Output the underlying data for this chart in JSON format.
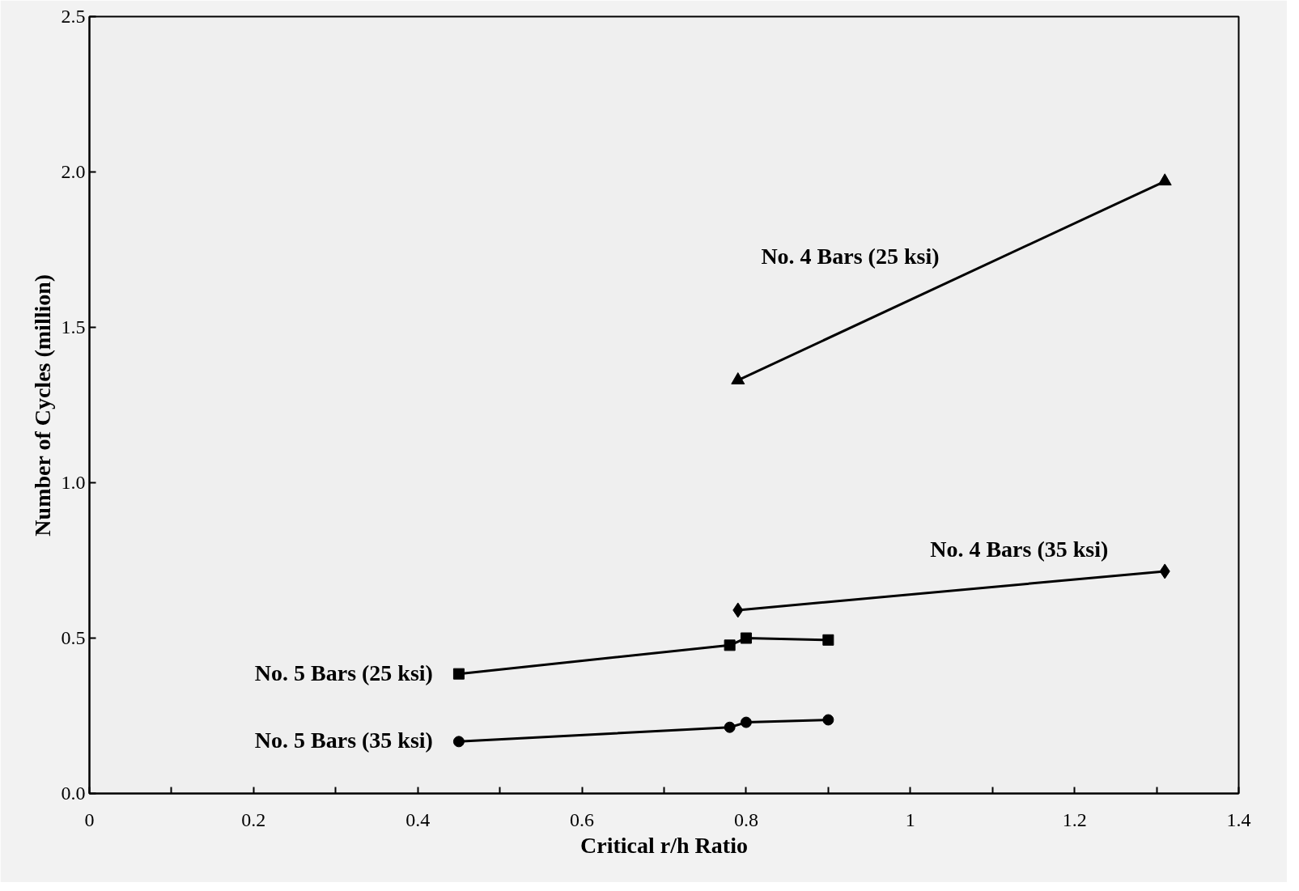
{
  "chart_data": {
    "type": "line",
    "xlabel": "Critical r/h Ratio",
    "ylabel": "Number of Cycles (million)",
    "xlim": [
      0,
      1.4
    ],
    "ylim": [
      0,
      2.5
    ],
    "xticks": [
      0,
      {
        "value": 0.1,
        "label": null
      },
      0.2,
      {
        "value": 0.3,
        "label": null
      },
      0.4,
      {
        "value": 0.5,
        "label": null
      },
      0.6,
      {
        "value": 0.7,
        "label": null
      },
      0.8,
      {
        "value": 0.9,
        "label": null
      },
      1,
      {
        "value": 1.1,
        "label": null
      },
      1.2,
      {
        "value": 1.3,
        "label": null
      },
      1.4
    ],
    "yticks": [
      {
        "value": 0,
        "label": "0.0"
      },
      0.5,
      {
        "value": 1,
        "label": "1.0"
      },
      1.5,
      {
        "value": 2,
        "label": "2.0"
      },
      2.5
    ],
    "grid": false,
    "line_style": "solid",
    "series": [
      {
        "name": "No. 4 Bars (25 ksi)",
        "color": "#000000",
        "marker": "triangle",
        "x": [
          0.79,
          1.31
        ],
        "values": [
          1.33,
          1.97
        ]
      },
      {
        "name": "No. 4 Bars (35 ksi)",
        "color": "#000000",
        "marker": "diamond",
        "x": [
          0.79,
          1.31
        ],
        "values": [
          0.59,
          0.715
        ]
      },
      {
        "name": "No. 5 Bars (25 ksi)",
        "color": "#000000",
        "marker": "square",
        "x": [
          0.45,
          0.78,
          0.8,
          0.9
        ],
        "values": [
          0.385,
          0.477,
          0.5,
          0.494
        ]
      },
      {
        "name": "No. 5 Bars (35 ksi)",
        "color": "#000000",
        "marker": "circle",
        "x": [
          0.45,
          0.78,
          0.8,
          0.9
        ],
        "values": [
          0.167,
          0.213,
          0.229,
          0.237
        ]
      }
    ]
  }
}
